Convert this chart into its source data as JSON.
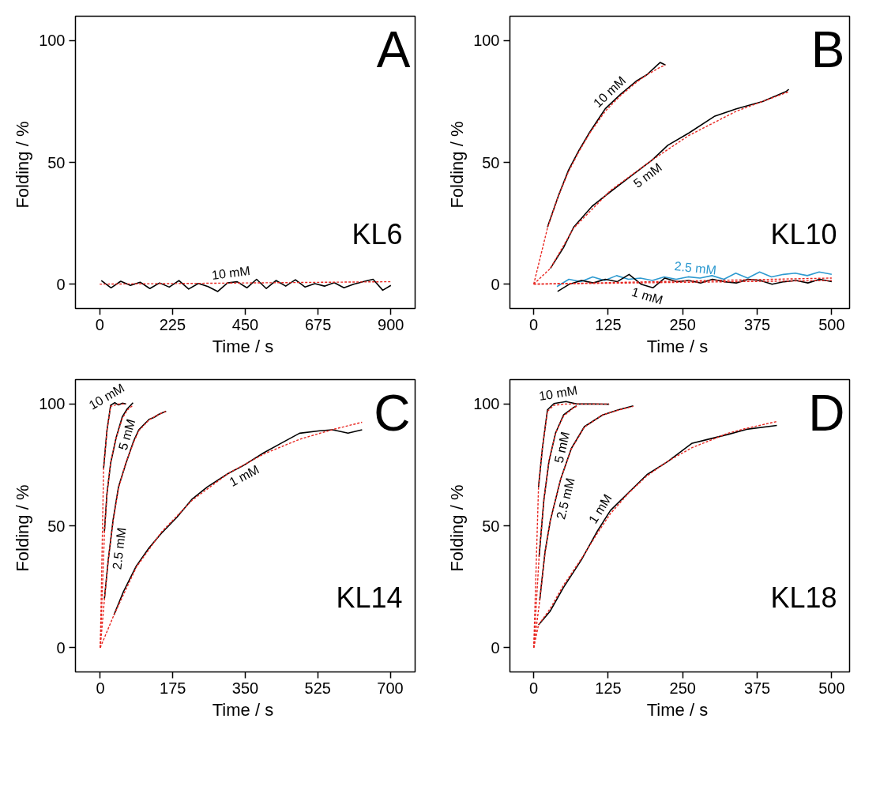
{
  "chart_data": [
    {
      "type": "line",
      "xlabel": "Time /  s",
      "ylabel": "Folding /  %",
      "xlim": [
        -75,
        975
      ],
      "ylim": [
        -10,
        110
      ],
      "xticks": [
        0,
        225,
        450,
        675,
        900
      ],
      "yticks": [
        0,
        50,
        100
      ],
      "annotations": [
        "A",
        "KL6"
      ],
      "series": [
        {
          "name": "10 mM",
          "color": "#000000",
          "line_style": "solid",
          "x": [
            5,
            35,
            65,
            95,
            125,
            155,
            185,
            215,
            245,
            275,
            305,
            335,
            365,
            395,
            425,
            455,
            485,
            515,
            545,
            575,
            605,
            635,
            665,
            695,
            725,
            755,
            785,
            815,
            845,
            875,
            900
          ],
          "values": [
            1.5,
            -1.5,
            1.2,
            -0.5,
            0.8,
            -1.8,
            0.5,
            -1.2,
            1.5,
            -2,
            0.3,
            -1,
            -3,
            0.5,
            1,
            -1.5,
            2,
            -1.8,
            1.5,
            -0.8,
            1.8,
            -1.2,
            0.2,
            -0.8,
            0.6,
            -1.5,
            0,
            1,
            2,
            -2.5,
            -0.5
          ]
        },
        {
          "color": "#e8251f",
          "line_style": "dashed",
          "x": [
            0,
            900
          ],
          "values": [
            0,
            1
          ]
        }
      ]
    },
    {
      "type": "line",
      "xlabel": "Time /  s",
      "ylabel": "Folding /  %",
      "xlim": [
        -40,
        530
      ],
      "ylim": [
        -10,
        110
      ],
      "xticks": [
        0,
        125,
        250,
        375,
        500
      ],
      "yticks": [
        0,
        50,
        100
      ],
      "annotations": [
        "B",
        "KL10"
      ],
      "series": [
        {
          "name": "10 mM",
          "color": "#000000",
          "line_style": "solid",
          "x": [
            23,
            41,
            58,
            76,
            94,
            120,
            146,
            173,
            190,
            212,
            221
          ],
          "values": [
            23.4,
            36,
            46.6,
            55,
            62.4,
            72,
            78,
            83.5,
            86,
            91,
            90
          ]
        },
        {
          "name": "5 mM",
          "color": "#000000",
          "line_style": "solid",
          "x": [
            28,
            50,
            67,
            98,
            129,
            164,
            199,
            225,
            260,
            304,
            340,
            384,
            423,
            428
          ],
          "values": [
            6.5,
            15,
            23.4,
            32,
            38,
            44.5,
            51,
            57,
            62,
            69,
            72,
            75,
            79,
            80
          ]
        },
        {
          "name": "2.5 mM",
          "color": "#2e9ad0",
          "line_style": "solid",
          "x": [
            39,
            59,
            79,
            99,
            119,
            139,
            159,
            179,
            199,
            219,
            239,
            259,
            279,
            299,
            319,
            339,
            359,
            379,
            399,
            419,
            439,
            459,
            479,
            500
          ],
          "values": [
            -1,
            2,
            1,
            3,
            1.5,
            3.5,
            2,
            2.5,
            1.5,
            3,
            2,
            3,
            2.5,
            3.5,
            2,
            4.5,
            2.5,
            5,
            3,
            4,
            4.5,
            3.5,
            5,
            4
          ]
        },
        {
          "name": "1 mM",
          "color": "#000000",
          "line_style": "solid",
          "x": [
            40,
            60,
            80,
            100,
            120,
            140,
            160,
            180,
            200,
            220,
            240,
            260,
            280,
            300,
            320,
            340,
            360,
            380,
            400,
            420,
            440,
            460,
            480,
            500
          ],
          "values": [
            -3,
            0,
            1.5,
            0.5,
            2,
            1,
            4,
            0,
            -1.5,
            2.5,
            1,
            1.5,
            0.5,
            2,
            1,
            0.5,
            2,
            1.5,
            0,
            1,
            1.5,
            0.5,
            2,
            1
          ]
        },
        {
          "color": "#e8251f",
          "line_style": "dashed",
          "x": [
            0,
            23,
            41,
            58,
            76,
            94,
            120,
            146,
            173,
            190,
            212,
            221
          ],
          "values": [
            0,
            23,
            36,
            46,
            54.5,
            62,
            71,
            77.5,
            83,
            86,
            89,
            90
          ]
        },
        {
          "color": "#e8251f",
          "line_style": "dashed",
          "x": [
            0,
            28,
            67,
            129,
            199,
            260,
            340,
            428
          ],
          "values": [
            0,
            6.5,
            23,
            38.5,
            51,
            61,
            71,
            79
          ]
        },
        {
          "color": "#e8251f",
          "line_style": "dashed",
          "x": [
            0,
            500
          ],
          "values": [
            0,
            2.5
          ]
        },
        {
          "color": "#e8251f",
          "line_style": "dashed",
          "x": [
            0,
            500
          ],
          "values": [
            0,
            1.5
          ]
        }
      ]
    },
    {
      "type": "line",
      "xlabel": "Time /  s",
      "ylabel": "Folding /  %",
      "xlim": [
        -60,
        760
      ],
      "ylim": [
        -10,
        110
      ],
      "xticks": [
        0,
        175,
        350,
        525,
        700
      ],
      "yticks": [
        0,
        50,
        100
      ],
      "annotations": [
        "C",
        "KL14"
      ],
      "series": [
        {
          "name": "10 mM",
          "color": "#000000",
          "line_style": "solid",
          "x": [
            8,
            16,
            25,
            35,
            44,
            53,
            62
          ],
          "values": [
            73.6,
            89,
            99.5,
            100.5,
            99.6,
            100.3,
            100
          ]
        },
        {
          "name": "5 mM",
          "color": "#000000",
          "line_style": "solid",
          "x": [
            10,
            16,
            25,
            38,
            53,
            65,
            79
          ],
          "values": [
            47.7,
            63,
            75.7,
            86,
            94.7,
            98,
            100.5
          ]
        },
        {
          "name": "2.5 mM",
          "color": "#000000",
          "line_style": "solid",
          "x": [
            10,
            19,
            31,
            44,
            62,
            81,
            93,
            105,
            118,
            130,
            142,
            159
          ],
          "values": [
            20,
            35.6,
            52.5,
            66,
            75.7,
            85,
            89.4,
            91.5,
            93.7,
            94.5,
            95.8,
            97
          ]
        },
        {
          "name": "1 mM",
          "color": "#000000",
          "line_style": "solid",
          "x": [
            33,
            56,
            87,
            118,
            148,
            185,
            222,
            259,
            309,
            345,
            395,
            438,
            481,
            530,
            561,
            598,
            632
          ],
          "values": [
            13.4,
            23,
            33.5,
            41,
            47,
            53.5,
            61,
            66,
            71.5,
            74.7,
            80,
            84,
            88,
            89,
            89.4,
            88,
            89.4
          ]
        },
        {
          "color": "#e8251f",
          "line_style": "dashed",
          "x": [
            0,
            8,
            16,
            25,
            44,
            62
          ],
          "values": [
            0,
            73.6,
            89,
            99,
            100,
            100
          ]
        },
        {
          "color": "#e8251f",
          "line_style": "dashed",
          "x": [
            0,
            10,
            16,
            25,
            38,
            53,
            65,
            79
          ],
          "values": [
            0,
            47,
            63,
            76,
            86,
            94,
            97.5,
            99.5
          ]
        },
        {
          "color": "#e8251f",
          "line_style": "dashed",
          "x": [
            0,
            10,
            19,
            31,
            44,
            62,
            81,
            93,
            118,
            142,
            159
          ],
          "values": [
            0,
            20,
            35.5,
            52,
            65.5,
            76,
            84.5,
            89,
            93.5,
            95.8,
            97
          ]
        },
        {
          "color": "#e8251f",
          "line_style": "dashed",
          "x": [
            0,
            33,
            87,
            148,
            222,
            309,
            395,
            481,
            561,
            632
          ],
          "values": [
            0,
            13.4,
            33,
            47.5,
            60.5,
            71.5,
            79.5,
            85.5,
            89.5,
            92.5
          ]
        }
      ]
    },
    {
      "type": "line",
      "xlabel": "Time /  s",
      "ylabel": "Folding /  %",
      "xlim": [
        -40,
        530
      ],
      "ylim": [
        -10,
        110
      ],
      "xticks": [
        0,
        125,
        250,
        375,
        500
      ],
      "yticks": [
        0,
        50,
        100
      ],
      "annotations": [
        "D",
        "KL18"
      ],
      "series": [
        {
          "name": "10 mM",
          "color": "#000000",
          "line_style": "solid",
          "x": [
            8,
            14.5,
            23,
            34,
            54,
            72,
            98,
            126.5
          ],
          "values": [
            65.9,
            81.7,
            97.6,
            100.2,
            101,
            100,
            100,
            99.9
          ]
        },
        {
          "name": "5 mM",
          "color": "#000000",
          "line_style": "solid",
          "x": [
            9,
            17,
            25.5,
            36.5,
            50,
            67,
            72
          ],
          "values": [
            37.3,
            60.6,
            76.4,
            88,
            95.5,
            98.6,
            99.2
          ]
        },
        {
          "name": "2.5 mM",
          "color": "#000000",
          "line_style": "solid",
          "x": [
            10,
            19,
            27.7,
            45,
            63,
            85,
            115.6,
            142,
            167
          ],
          "values": [
            19.3,
            39.4,
            52,
            69,
            81.7,
            90.7,
            95.5,
            97.6,
            99.2
          ]
        },
        {
          "name": "1 mM",
          "color": "#000000",
          "line_style": "solid",
          "x": [
            8,
            27.7,
            49.7,
            80,
            107,
            128.7,
            159.5,
            190,
            225,
            265,
            291,
            326,
            357,
            408
          ],
          "values": [
            9.3,
            15,
            24.6,
            36,
            47.9,
            56.3,
            63.7,
            71,
            76.4,
            83.8,
            85.4,
            87.5,
            89.6,
            91.2
          ]
        },
        {
          "color": "#e8251f",
          "line_style": "dashed",
          "x": [
            0,
            8,
            14.5,
            23,
            34,
            54,
            98,
            126.5
          ],
          "values": [
            0,
            65.9,
            82,
            97,
            99.5,
            100,
            100,
            100
          ]
        },
        {
          "color": "#e8251f",
          "line_style": "dashed",
          "x": [
            0,
            9,
            17,
            25.5,
            36.5,
            50,
            67,
            72
          ],
          "values": [
            0,
            37.3,
            60.5,
            76.5,
            88,
            95,
            98.5,
            99
          ]
        },
        {
          "color": "#e8251f",
          "line_style": "dashed",
          "x": [
            0,
            10,
            19,
            27.7,
            45,
            63,
            85,
            115.6,
            142,
            167
          ],
          "values": [
            0,
            19.3,
            39,
            52,
            69,
            81.5,
            90.5,
            95.5,
            97.5,
            99
          ]
        },
        {
          "color": "#e8251f",
          "line_style": "dashed",
          "x": [
            0,
            8,
            27.7,
            49.7,
            80,
            107,
            128.7,
            159.5,
            190,
            225,
            265,
            326,
            357,
            408
          ],
          "values": [
            0,
            9.3,
            16,
            25.5,
            36.5,
            47,
            55,
            63.5,
            70.5,
            76.5,
            82,
            88,
            90,
            92.8
          ]
        }
      ]
    }
  ]
}
